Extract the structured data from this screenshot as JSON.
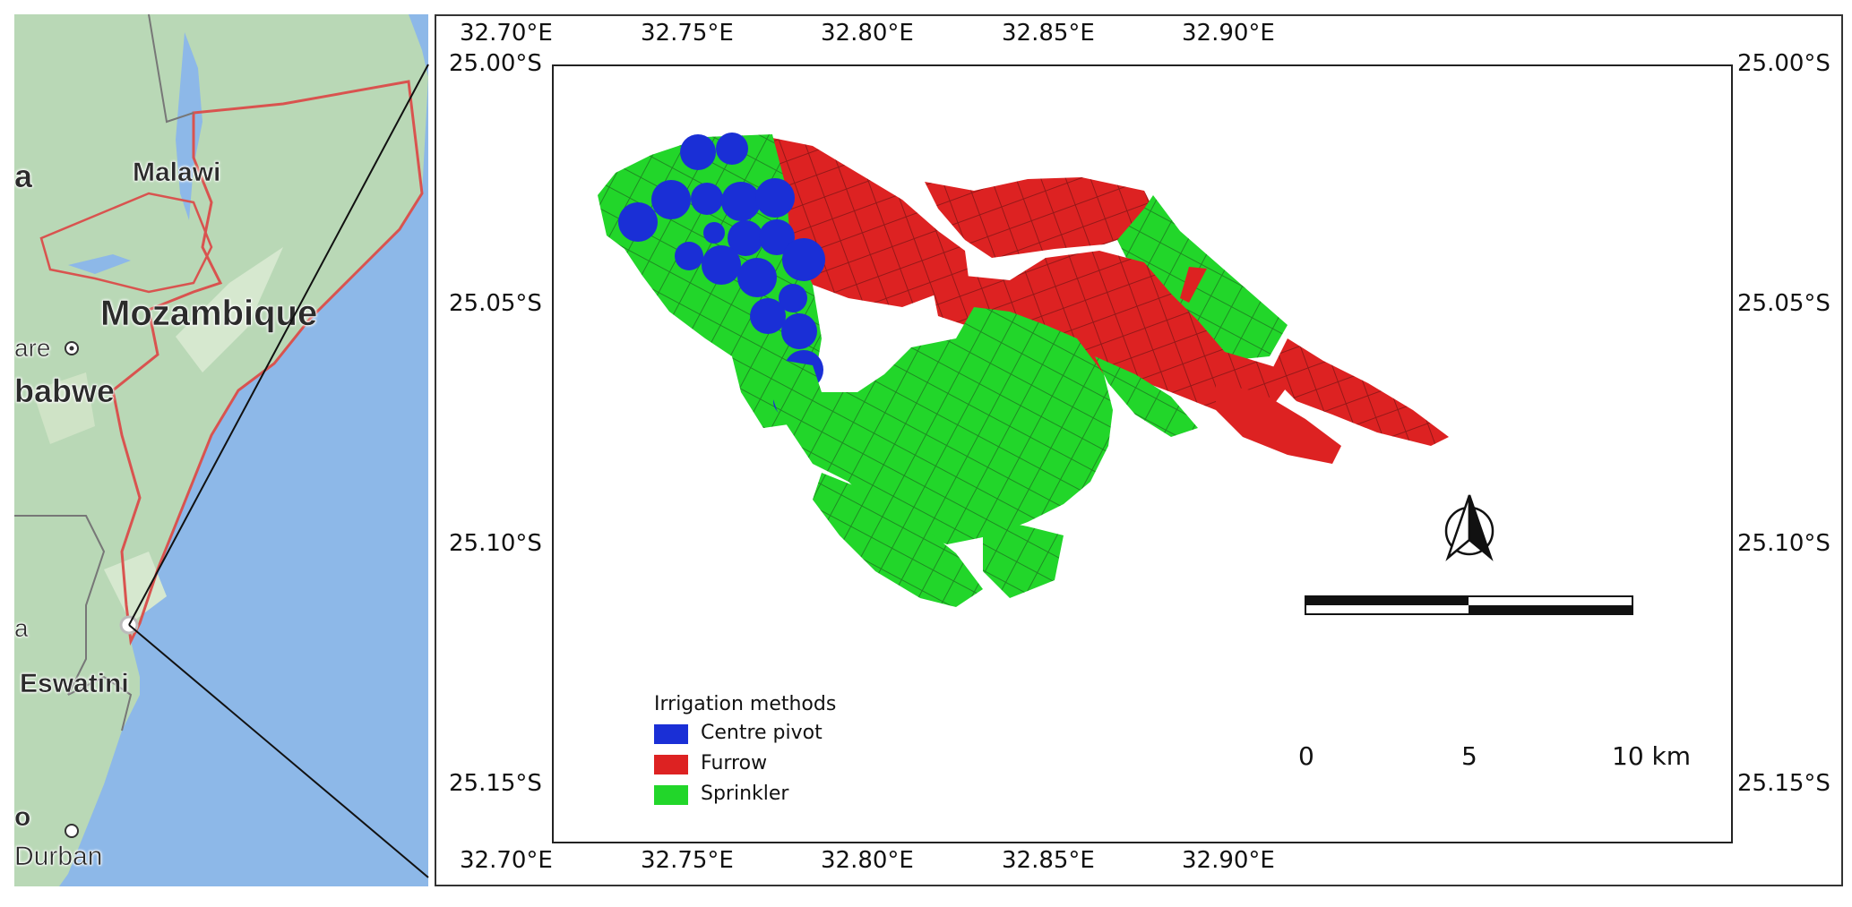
{
  "inset_map": {
    "labels": {
      "malawi": "Malawi",
      "mozambique": "Mozambique",
      "harare_partial": "are",
      "zimbabwe_partial": "babwe",
      "eswatini": "Eswatini",
      "durban": "Durban",
      "edge_a_top": "a",
      "edge_a_bottom": "a",
      "edge_o": "o"
    },
    "colors": {
      "land": "#b9d8b6",
      "land_light": "#d6e8cf",
      "water": "#8db8e8",
      "border": "#d9534f"
    }
  },
  "main_map": {
    "x_ticks": [
      "32.70°E",
      "32.75°E",
      "32.80°E",
      "32.85°E",
      "32.90°E"
    ],
    "y_ticks": [
      "25.00°S",
      "25.05°S",
      "25.10°S",
      "25.15°S"
    ],
    "legend": {
      "title": "Irrigation methods",
      "items": [
        {
          "label": "Centre pivot",
          "color": "#1a2fd6"
        },
        {
          "label": "Furrow",
          "color": "#dd2222"
        },
        {
          "label": "Sprinkler",
          "color": "#22d62a"
        }
      ]
    },
    "scale_bar": {
      "labels": [
        "0",
        "5",
        "10 km"
      ]
    },
    "north_arrow_icon": "north-arrow-icon"
  }
}
